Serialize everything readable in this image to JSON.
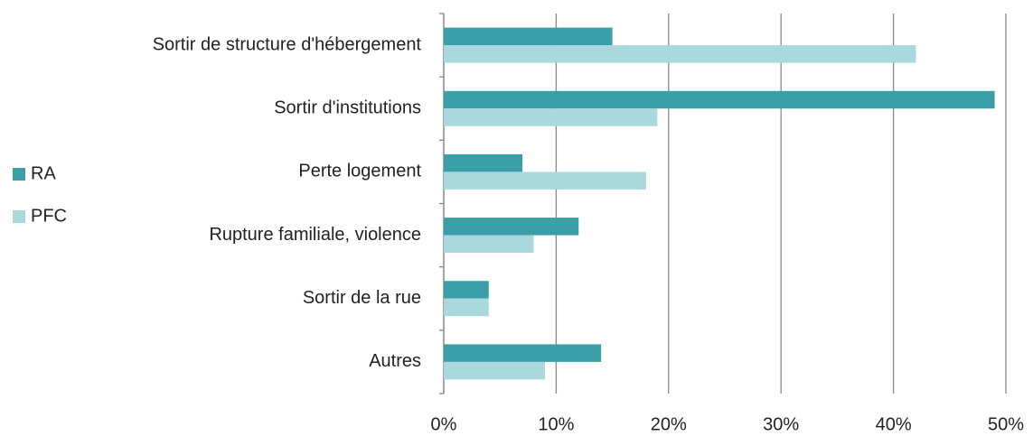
{
  "chart_data": {
    "type": "bar",
    "orientation": "horizontal",
    "categories": [
      "Sortir de structure d'hébergement",
      "Sortir d'institutions",
      "Perte logement",
      "Rupture familiale, violence",
      "Sortir de la rue",
      "Autres"
    ],
    "series": [
      {
        "name": "RA",
        "color": "#3a9fa8",
        "values": [
          15,
          49,
          7,
          12,
          4,
          14
        ]
      },
      {
        "name": "PFC",
        "color": "#a9d8dd",
        "values": [
          42,
          19,
          18,
          8,
          4,
          9
        ]
      }
    ],
    "xlim": [
      0,
      50
    ],
    "xticks": [
      {
        "value": 0,
        "label": "0%"
      },
      {
        "value": 10,
        "label": "10%"
      },
      {
        "value": 20,
        "label": "20%"
      },
      {
        "value": 30,
        "label": "30%"
      },
      {
        "value": 40,
        "label": "40%"
      },
      {
        "value": 50,
        "label": "50%"
      }
    ],
    "grid": true,
    "legend": "left"
  }
}
